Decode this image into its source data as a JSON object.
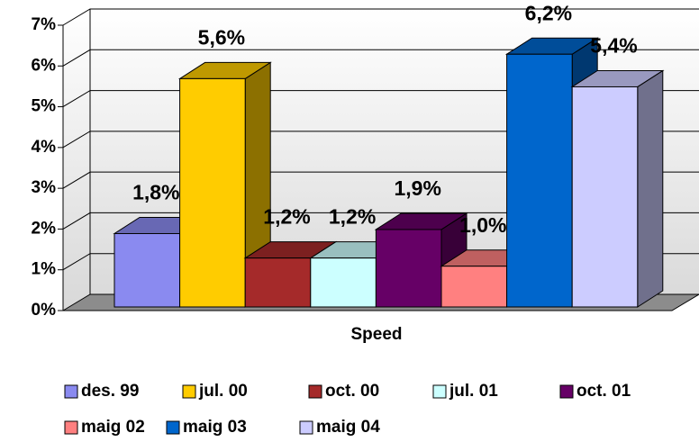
{
  "chart_data": {
    "type": "bar3d",
    "categories": [
      "Speed"
    ],
    "series": [
      {
        "name": "des. 99",
        "color": "#8a8af0",
        "values": [
          1.8
        ],
        "value_labels": [
          "1,8%"
        ]
      },
      {
        "name": "jul. 00",
        "color": "#ffcc00",
        "values": [
          5.6
        ],
        "value_labels": [
          "5,6%"
        ]
      },
      {
        "name": "oct. 00",
        "color": "#a52a2a",
        "values": [
          1.2
        ],
        "value_labels": [
          "1,2%"
        ]
      },
      {
        "name": "jul. 01",
        "color": "#ccffff",
        "values": [
          1.2
        ],
        "value_labels": [
          "1,2%"
        ]
      },
      {
        "name": "oct. 01",
        "color": "#660066",
        "values": [
          1.9
        ],
        "value_labels": [
          "1,9%"
        ]
      },
      {
        "name": "maig 02",
        "color": "#ff8080",
        "values": [
          1.0
        ],
        "value_labels": [
          "1,0%"
        ]
      },
      {
        "name": "maig 03",
        "color": "#0066cc",
        "values": [
          6.2
        ],
        "value_labels": [
          "6,2%"
        ]
      },
      {
        "name": "maig 04",
        "color": "#ccccff",
        "values": [
          5.4
        ],
        "value_labels": [
          "5,4%"
        ]
      }
    ],
    "ylim": [
      0,
      7
    ],
    "yticks": [
      {
        "value": 0,
        "label": "0%"
      },
      {
        "value": 1,
        "label": "1%"
      },
      {
        "value": 2,
        "label": "2%"
      },
      {
        "value": 3,
        "label": "3%"
      },
      {
        "value": 4,
        "label": "4%"
      },
      {
        "value": 5,
        "label": "5%"
      },
      {
        "value": 6,
        "label": "6%"
      },
      {
        "value": 7,
        "label": "7%"
      }
    ],
    "grid": true,
    "legend": "bottom"
  }
}
